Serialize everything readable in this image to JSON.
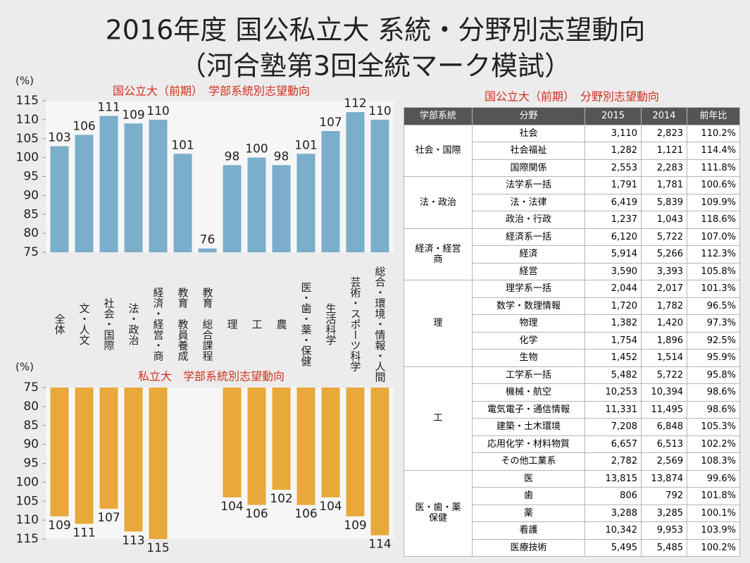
{
  "title": [
    "2016年度 国公私立大 系統・分野別志望動向",
    "（河合塾第3回全統マーク模試）"
  ],
  "chart_data": [
    {
      "type": "bar",
      "title": "国公立大（前期）　学部系統別志望動向",
      "ylabel": "(%)",
      "categories": [
        "全体",
        "文・人文",
        "社会・国際",
        "法・政治",
        "経済・経営・商",
        "教育　教員養成",
        "教育　総合課程",
        "理",
        "工",
        "農",
        "医・歯・薬・保健",
        "生活科学",
        "芸術・スポーツ科学",
        "総合・環境・情報・人間"
      ],
      "values": [
        103,
        106,
        111,
        109,
        110,
        101,
        76,
        98,
        100,
        98,
        101,
        107,
        112,
        110
      ],
      "color": "#7aaecb",
      "ylim": [
        75,
        115
      ],
      "yticks": [
        75,
        80,
        85,
        90,
        95,
        100,
        105,
        110,
        115
      ],
      "grid": false
    },
    {
      "type": "bar",
      "title": "私立大　学部系統別志望動向",
      "ylabel": "(%)",
      "values": [
        109,
        111,
        107,
        113,
        115,
        null,
        null,
        104,
        106,
        102,
        106,
        104,
        109,
        114
      ],
      "color": "#e8a93a",
      "ylim": [
        75,
        115
      ],
      "yticks": [
        75,
        80,
        85,
        90,
        95,
        100,
        105,
        110,
        115
      ],
      "inverted": true,
      "grid": false
    }
  ],
  "table": {
    "title": "国公立大（前期）　分野別志望動向",
    "header": [
      "学部系統",
      "分野",
      "2015",
      "2014",
      "前年比"
    ],
    "groups": [
      {
        "name": "社会・国際",
        "rows": [
          [
            "社会",
            "3,110",
            "2,823",
            "110.2%"
          ],
          [
            "社会福祉",
            "1,282",
            "1,121",
            "114.4%"
          ],
          [
            "国際関係",
            "2,553",
            "2,283",
            "111.8%"
          ]
        ]
      },
      {
        "name": "法・政治",
        "rows": [
          [
            "法学系一括",
            "1,791",
            "1,781",
            "100.6%"
          ],
          [
            "法・法律",
            "6,419",
            "5,839",
            "109.9%"
          ],
          [
            "政治・行政",
            "1,237",
            "1,043",
            "118.6%"
          ]
        ]
      },
      {
        "name": "経済・経営\n商",
        "rows": [
          [
            "経済系一括",
            "6,120",
            "5,722",
            "107.0%"
          ],
          [
            "経済",
            "5,914",
            "5,266",
            "112.3%"
          ],
          [
            "経営",
            "3,590",
            "3,393",
            "105.8%"
          ]
        ]
      },
      {
        "name": "理",
        "rows": [
          [
            "理学系一括",
            "2,044",
            "2,017",
            "101.3%"
          ],
          [
            "数学・数理情報",
            "1,720",
            "1,782",
            "96.5%"
          ],
          [
            "物理",
            "1,382",
            "1,420",
            "97.3%"
          ],
          [
            "化学",
            "1,754",
            "1,896",
            "92.5%"
          ],
          [
            "生物",
            "1,452",
            "1,514",
            "95.9%"
          ]
        ]
      },
      {
        "name": "工",
        "rows": [
          [
            "工学系一括",
            "5,482",
            "5,722",
            "95.8%"
          ],
          [
            "機械・航空",
            "10,253",
            "10,394",
            "98.6%"
          ],
          [
            "電気電子・通信情報",
            "11,331",
            "11,495",
            "98.6%"
          ],
          [
            "建築・土木環境",
            "7,208",
            "6,848",
            "105.3%"
          ],
          [
            "応用化学・材料物質",
            "6,657",
            "6,513",
            "102.2%"
          ],
          [
            "その他工業系",
            "2,782",
            "2,569",
            "108.3%"
          ]
        ]
      },
      {
        "name": "医・歯・薬\n保健",
        "rows": [
          [
            "医",
            "13,815",
            "13,874",
            "99.6%"
          ],
          [
            "歯",
            "806",
            "792",
            "101.8%"
          ],
          [
            "薬",
            "3,288",
            "3,285",
            "100.1%"
          ],
          [
            "看護",
            "10,342",
            "9,953",
            "103.9%"
          ],
          [
            "医療技術",
            "5,495",
            "5,485",
            "100.2%"
          ]
        ]
      }
    ]
  }
}
